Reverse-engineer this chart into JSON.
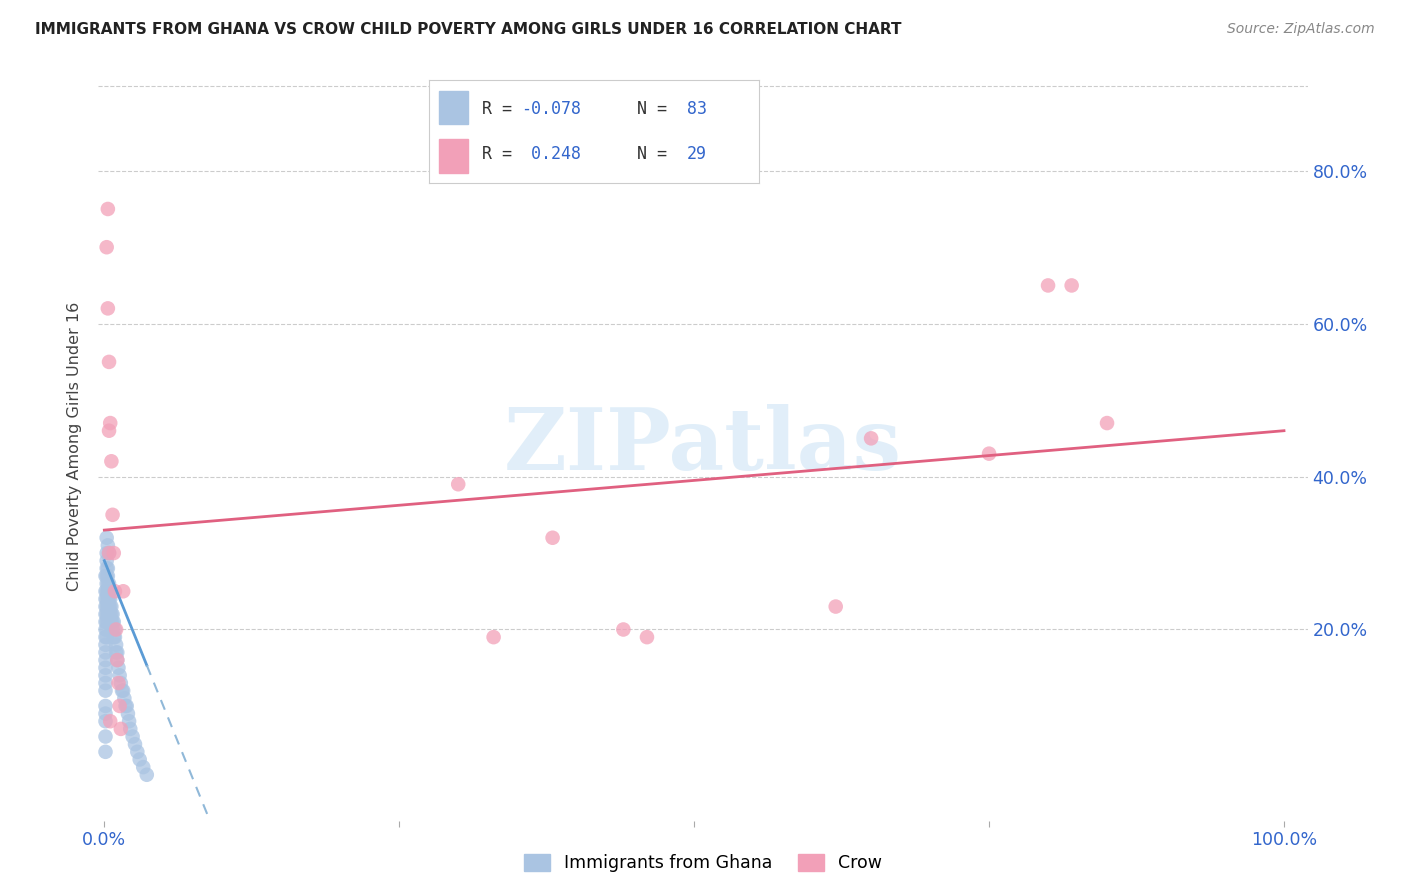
{
  "title": "IMMIGRANTS FROM GHANA VS CROW CHILD POVERTY AMONG GIRLS UNDER 16 CORRELATION CHART",
  "source": "Source: ZipAtlas.com",
  "ylabel": "Child Poverty Among Girls Under 16",
  "legend_label1": "Immigrants from Ghana",
  "legend_label2": "Crow",
  "R1": "-0.078",
  "N1": "83",
  "R2": "0.248",
  "N2": "29",
  "color_blue": "#aac4e2",
  "color_pink": "#f2a0b8",
  "color_blue_line": "#5b9bd5",
  "color_pink_line": "#e06080",
  "color_blue_dashed": "#90b8d8",
  "watermark_color": "#cde4f5",
  "ghana_x": [
    0.001,
    0.001,
    0.001,
    0.001,
    0.001,
    0.001,
    0.001,
    0.001,
    0.001,
    0.001,
    0.001,
    0.001,
    0.001,
    0.001,
    0.001,
    0.001,
    0.001,
    0.001,
    0.001,
    0.001,
    0.002,
    0.002,
    0.002,
    0.002,
    0.002,
    0.002,
    0.002,
    0.002,
    0.002,
    0.002,
    0.002,
    0.002,
    0.002,
    0.003,
    0.003,
    0.003,
    0.003,
    0.003,
    0.003,
    0.003,
    0.003,
    0.003,
    0.004,
    0.004,
    0.004,
    0.004,
    0.004,
    0.004,
    0.005,
    0.005,
    0.005,
    0.005,
    0.006,
    0.006,
    0.006,
    0.007,
    0.007,
    0.007,
    0.008,
    0.008,
    0.009,
    0.009,
    0.01,
    0.01,
    0.011,
    0.011,
    0.012,
    0.013,
    0.014,
    0.015,
    0.016,
    0.017,
    0.018,
    0.019,
    0.02,
    0.021,
    0.022,
    0.024,
    0.026,
    0.028,
    0.03,
    0.033,
    0.036
  ],
  "ghana_y": [
    0.27,
    0.25,
    0.24,
    0.23,
    0.22,
    0.21,
    0.2,
    0.19,
    0.18,
    0.17,
    0.16,
    0.15,
    0.14,
    0.13,
    0.12,
    0.1,
    0.09,
    0.08,
    0.06,
    0.04,
    0.3,
    0.29,
    0.28,
    0.27,
    0.26,
    0.25,
    0.24,
    0.23,
    0.22,
    0.21,
    0.2,
    0.19,
    0.32,
    0.28,
    0.27,
    0.26,
    0.25,
    0.24,
    0.23,
    0.22,
    0.21,
    0.31,
    0.26,
    0.25,
    0.24,
    0.23,
    0.22,
    0.3,
    0.25,
    0.24,
    0.23,
    0.22,
    0.23,
    0.22,
    0.21,
    0.22,
    0.21,
    0.2,
    0.21,
    0.19,
    0.2,
    0.19,
    0.18,
    0.17,
    0.17,
    0.16,
    0.15,
    0.14,
    0.13,
    0.12,
    0.12,
    0.11,
    0.1,
    0.1,
    0.09,
    0.08,
    0.07,
    0.06,
    0.05,
    0.04,
    0.03,
    0.02,
    0.01
  ],
  "crow_x": [
    0.002,
    0.003,
    0.003,
    0.004,
    0.004,
    0.005,
    0.006,
    0.007,
    0.008,
    0.009,
    0.01,
    0.011,
    0.012,
    0.013,
    0.3,
    0.33,
    0.38,
    0.44,
    0.46,
    0.62,
    0.65,
    0.75,
    0.8,
    0.82,
    0.85,
    0.004,
    0.005,
    0.014,
    0.016
  ],
  "crow_y": [
    0.7,
    0.75,
    0.62,
    0.55,
    0.46,
    0.47,
    0.42,
    0.35,
    0.3,
    0.25,
    0.2,
    0.16,
    0.13,
    0.1,
    0.39,
    0.19,
    0.32,
    0.2,
    0.19,
    0.23,
    0.45,
    0.43,
    0.65,
    0.65,
    0.47,
    0.3,
    0.08,
    0.07,
    0.25
  ],
  "slope_blue": -3.8,
  "intercept_blue": 0.29,
  "slope_pink": 0.13,
  "intercept_pink": 0.33,
  "xlim": [
    -0.005,
    1.02
  ],
  "ylim": [
    -0.05,
    0.93
  ],
  "xticks": [
    0.0,
    0.25,
    0.5,
    0.75,
    1.0
  ],
  "xtick_labels": [
    "0.0%",
    "",
    "",
    "",
    "100.0%"
  ],
  "ytick_positions": [
    0.2,
    0.4,
    0.6,
    0.8
  ],
  "ytick_labels": [
    "20.0%",
    "40.0%",
    "60.0%",
    "80.0%"
  ]
}
